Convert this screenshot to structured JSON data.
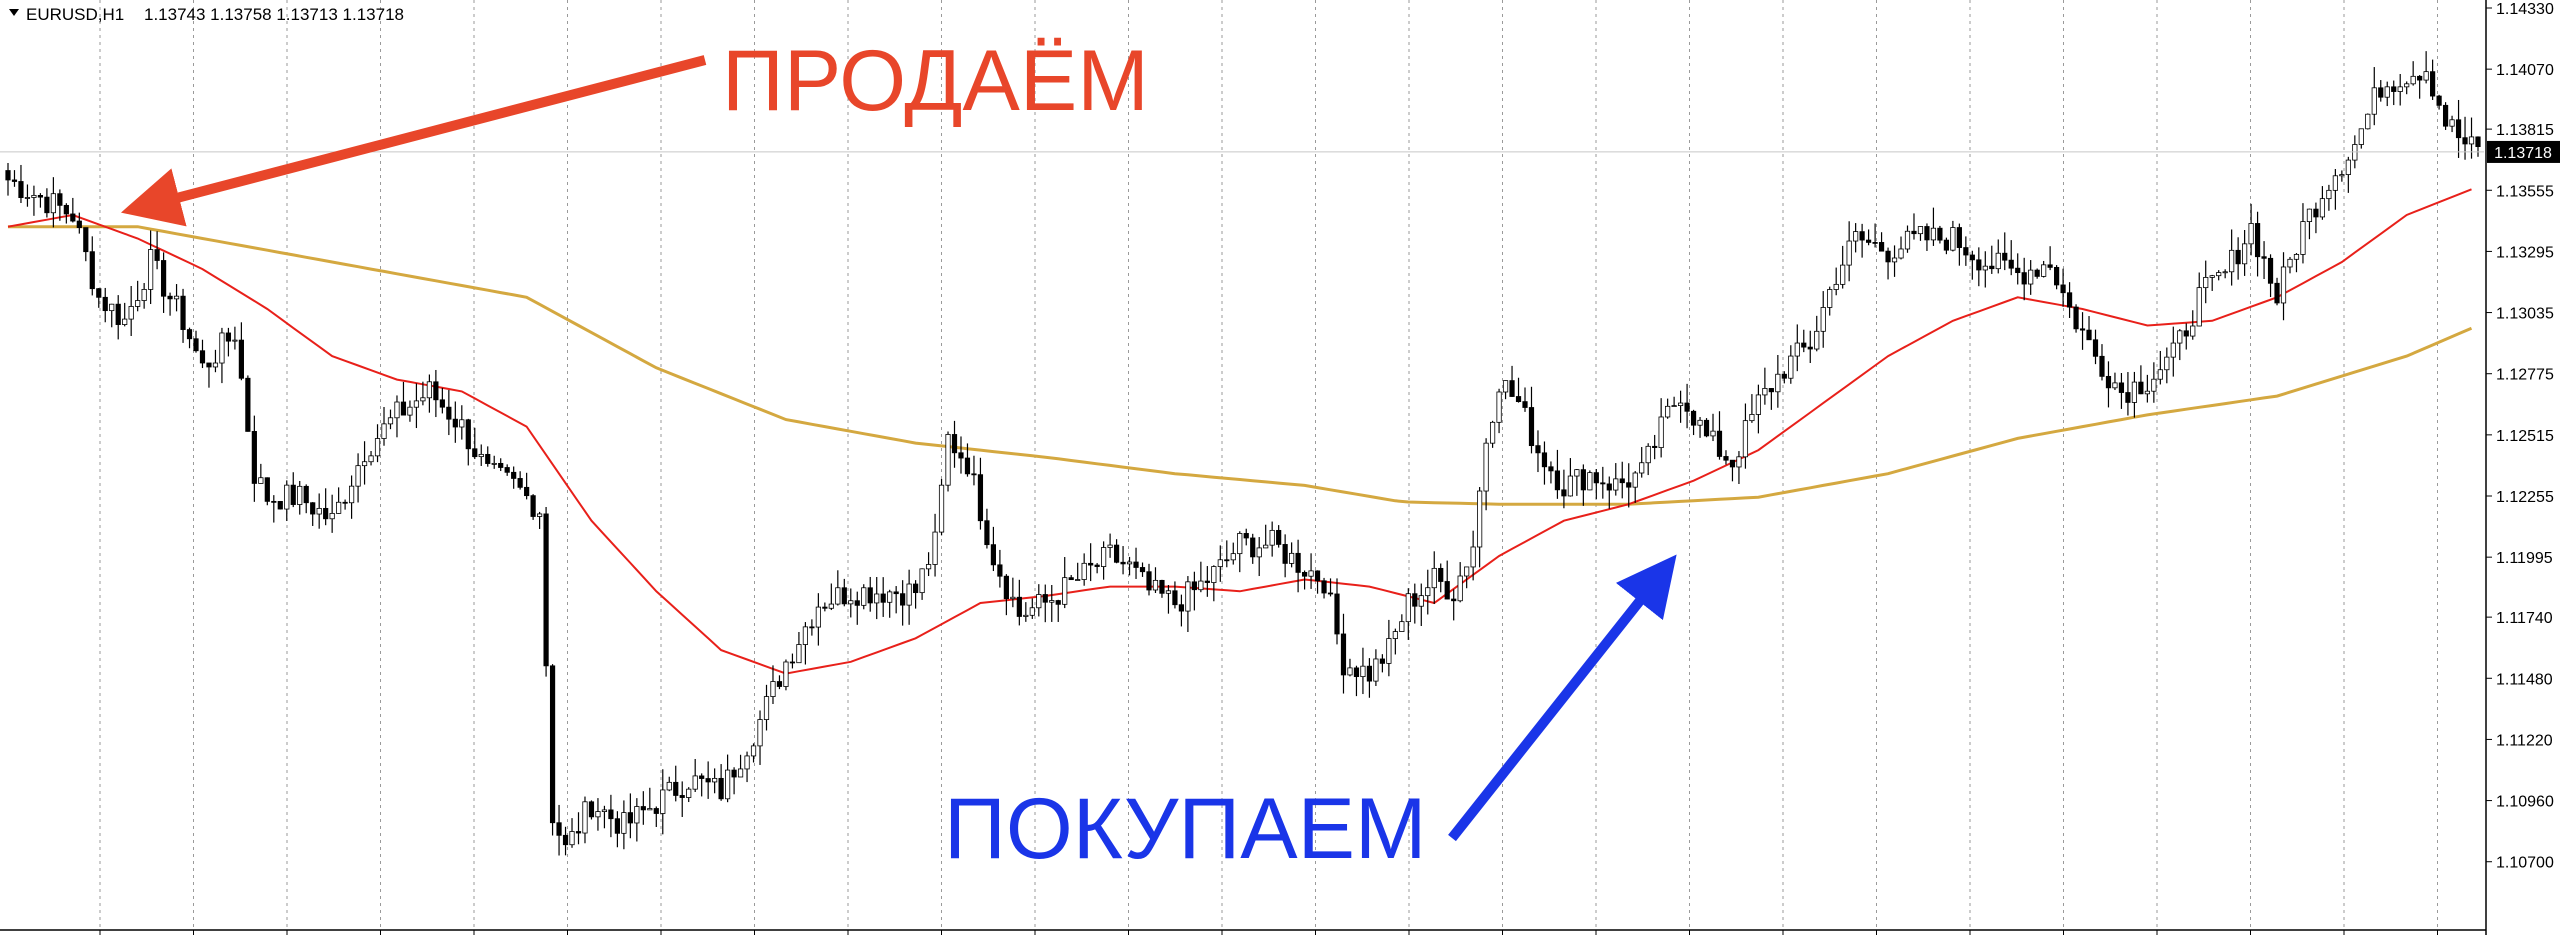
{
  "header": {
    "triangle_icon": "triangle-down-icon",
    "symbol": "EURUSD,H1",
    "ohlc": "1.13743 1.13758 1.13713 1.13718"
  },
  "annotations": {
    "sell_label": "ПРОДАЁМ",
    "buy_label": "ПОКУПАЕМ",
    "sell_color": "#e8462a",
    "buy_color": "#1a35e8"
  },
  "chart_data": {
    "type": "candlestick",
    "title": "",
    "ylim": [
      1.1055,
      1.1433
    ],
    "y_ticks": [
      "1.14330",
      "1.14070",
      "1.13815",
      "1.13555",
      "1.13295",
      "1.13035",
      "1.12775",
      "1.12515",
      "1.12255",
      "1.11995",
      "1.11740",
      "1.11480",
      "1.11220",
      "1.10960",
      "1.10700"
    ],
    "current_price": "1.13718",
    "grid": "vertical-dotted",
    "colors": {
      "candle": "#000000",
      "ma_fast": "#e8201a",
      "ma_slow": "#d4a840",
      "price_tag_bg": "#000000",
      "price_tag_text": "#ffffff"
    },
    "key_points": [
      [
        0,
        1.136
      ],
      [
        10,
        1.1345
      ],
      [
        14,
        1.131
      ],
      [
        18,
        1.13
      ],
      [
        22,
        1.1325
      ],
      [
        27,
        1.13
      ],
      [
        30,
        1.128
      ],
      [
        35,
        1.1295
      ],
      [
        38,
        1.1235
      ],
      [
        40,
        1.1225
      ],
      [
        45,
        1.1225
      ],
      [
        50,
        1.1215
      ],
      [
        55,
        1.1245
      ],
      [
        60,
        1.126
      ],
      [
        65,
        1.127
      ],
      [
        70,
        1.1255
      ],
      [
        74,
        1.1235
      ],
      [
        78,
        1.123
      ],
      [
        82,
        1.122
      ],
      [
        84,
        1.109
      ],
      [
        86,
        1.1075
      ],
      [
        90,
        1.1095
      ],
      [
        95,
        1.1085
      ],
      [
        100,
        1.1095
      ],
      [
        105,
        1.1105
      ],
      [
        110,
        1.11
      ],
      [
        113,
        1.1115
      ],
      [
        116,
        1.113
      ],
      [
        120,
        1.1155
      ],
      [
        125,
        1.118
      ],
      [
        130,
        1.1185
      ],
      [
        135,
        1.1185
      ],
      [
        140,
        1.1185
      ],
      [
        143,
        1.1205
      ],
      [
        145,
        1.125
      ],
      [
        148,
        1.124
      ],
      [
        152,
        1.12
      ],
      [
        156,
        1.1175
      ],
      [
        160,
        1.118
      ],
      [
        165,
        1.119
      ],
      [
        170,
        1.12
      ],
      [
        173,
        1.1195
      ],
      [
        176,
        1.1185
      ],
      [
        180,
        1.118
      ],
      [
        183,
        1.1185
      ],
      [
        187,
        1.1195
      ],
      [
        190,
        1.1205
      ],
      [
        195,
        1.1205
      ],
      [
        200,
        1.1195
      ],
      [
        203,
        1.119
      ],
      [
        206,
        1.1155
      ],
      [
        210,
        1.115
      ],
      [
        213,
        1.116
      ],
      [
        216,
        1.118
      ],
      [
        220,
        1.119
      ],
      [
        223,
        1.1185
      ],
      [
        226,
        1.1205
      ],
      [
        228,
        1.125
      ],
      [
        230,
        1.1275
      ],
      [
        233,
        1.1265
      ],
      [
        236,
        1.1245
      ],
      [
        240,
        1.123
      ],
      [
        244,
        1.1235
      ],
      [
        248,
        1.123
      ],
      [
        252,
        1.1235
      ],
      [
        256,
        1.126
      ],
      [
        258,
        1.127
      ],
      [
        262,
        1.125
      ],
      [
        266,
        1.124
      ],
      [
        270,
        1.1265
      ],
      [
        274,
        1.128
      ],
      [
        278,
        1.129
      ],
      [
        282,
        1.132
      ],
      [
        285,
        1.1335
      ],
      [
        290,
        1.133
      ],
      [
        295,
        1.1335
      ],
      [
        300,
        1.1335
      ],
      [
        305,
        1.1325
      ],
      [
        310,
        1.132
      ],
      [
        315,
        1.1325
      ],
      [
        318,
        1.1305
      ],
      [
        322,
        1.1285
      ],
      [
        326,
        1.127
      ],
      [
        330,
        1.1275
      ],
      [
        334,
        1.1285
      ],
      [
        338,
        1.131
      ],
      [
        342,
        1.132
      ],
      [
        346,
        1.134
      ],
      [
        350,
        1.131
      ],
      [
        354,
        1.134
      ],
      [
        358,
        1.136
      ],
      [
        362,
        1.1375
      ],
      [
        366,
        1.14
      ],
      [
        370,
        1.1405
      ],
      [
        373,
        1.1408
      ],
      [
        376,
        1.1385
      ],
      [
        379,
        1.1375
      ],
      [
        381,
        1.1372
      ]
    ],
    "ma_fast_points": [
      [
        0,
        1.134
      ],
      [
        10,
        1.1345
      ],
      [
        20,
        1.1335
      ],
      [
        30,
        1.1322
      ],
      [
        40,
        1.1305
      ],
      [
        50,
        1.1285
      ],
      [
        60,
        1.1275
      ],
      [
        70,
        1.127
      ],
      [
        80,
        1.1255
      ],
      [
        90,
        1.1215
      ],
      [
        100,
        1.1185
      ],
      [
        110,
        1.116
      ],
      [
        120,
        1.115
      ],
      [
        130,
        1.1155
      ],
      [
        140,
        1.1165
      ],
      [
        150,
        1.118
      ],
      [
        160,
        1.1183
      ],
      [
        170,
        1.1187
      ],
      [
        180,
        1.1187
      ],
      [
        190,
        1.1185
      ],
      [
        200,
        1.119
      ],
      [
        210,
        1.1187
      ],
      [
        220,
        1.118
      ],
      [
        230,
        1.12
      ],
      [
        240,
        1.1215
      ],
      [
        250,
        1.1222
      ],
      [
        260,
        1.1232
      ],
      [
        270,
        1.1245
      ],
      [
        280,
        1.1265
      ],
      [
        290,
        1.1285
      ],
      [
        300,
        1.13
      ],
      [
        310,
        1.131
      ],
      [
        320,
        1.1305
      ],
      [
        330,
        1.1298
      ],
      [
        340,
        1.13
      ],
      [
        350,
        1.131
      ],
      [
        360,
        1.1325
      ],
      [
        370,
        1.1345
      ],
      [
        381,
        1.1357
      ]
    ],
    "ma_slow_points": [
      [
        0,
        1.134
      ],
      [
        20,
        1.134
      ],
      [
        40,
        1.133
      ],
      [
        60,
        1.132
      ],
      [
        80,
        1.131
      ],
      [
        100,
        1.128
      ],
      [
        120,
        1.1258
      ],
      [
        140,
        1.1248
      ],
      [
        160,
        1.1242
      ],
      [
        180,
        1.1235
      ],
      [
        200,
        1.123
      ],
      [
        215,
        1.1223
      ],
      [
        230,
        1.1222
      ],
      [
        250,
        1.1222
      ],
      [
        270,
        1.1225
      ],
      [
        290,
        1.1235
      ],
      [
        310,
        1.125
      ],
      [
        330,
        1.126
      ],
      [
        350,
        1.1268
      ],
      [
        370,
        1.1285
      ],
      [
        381,
        1.1298
      ]
    ]
  }
}
